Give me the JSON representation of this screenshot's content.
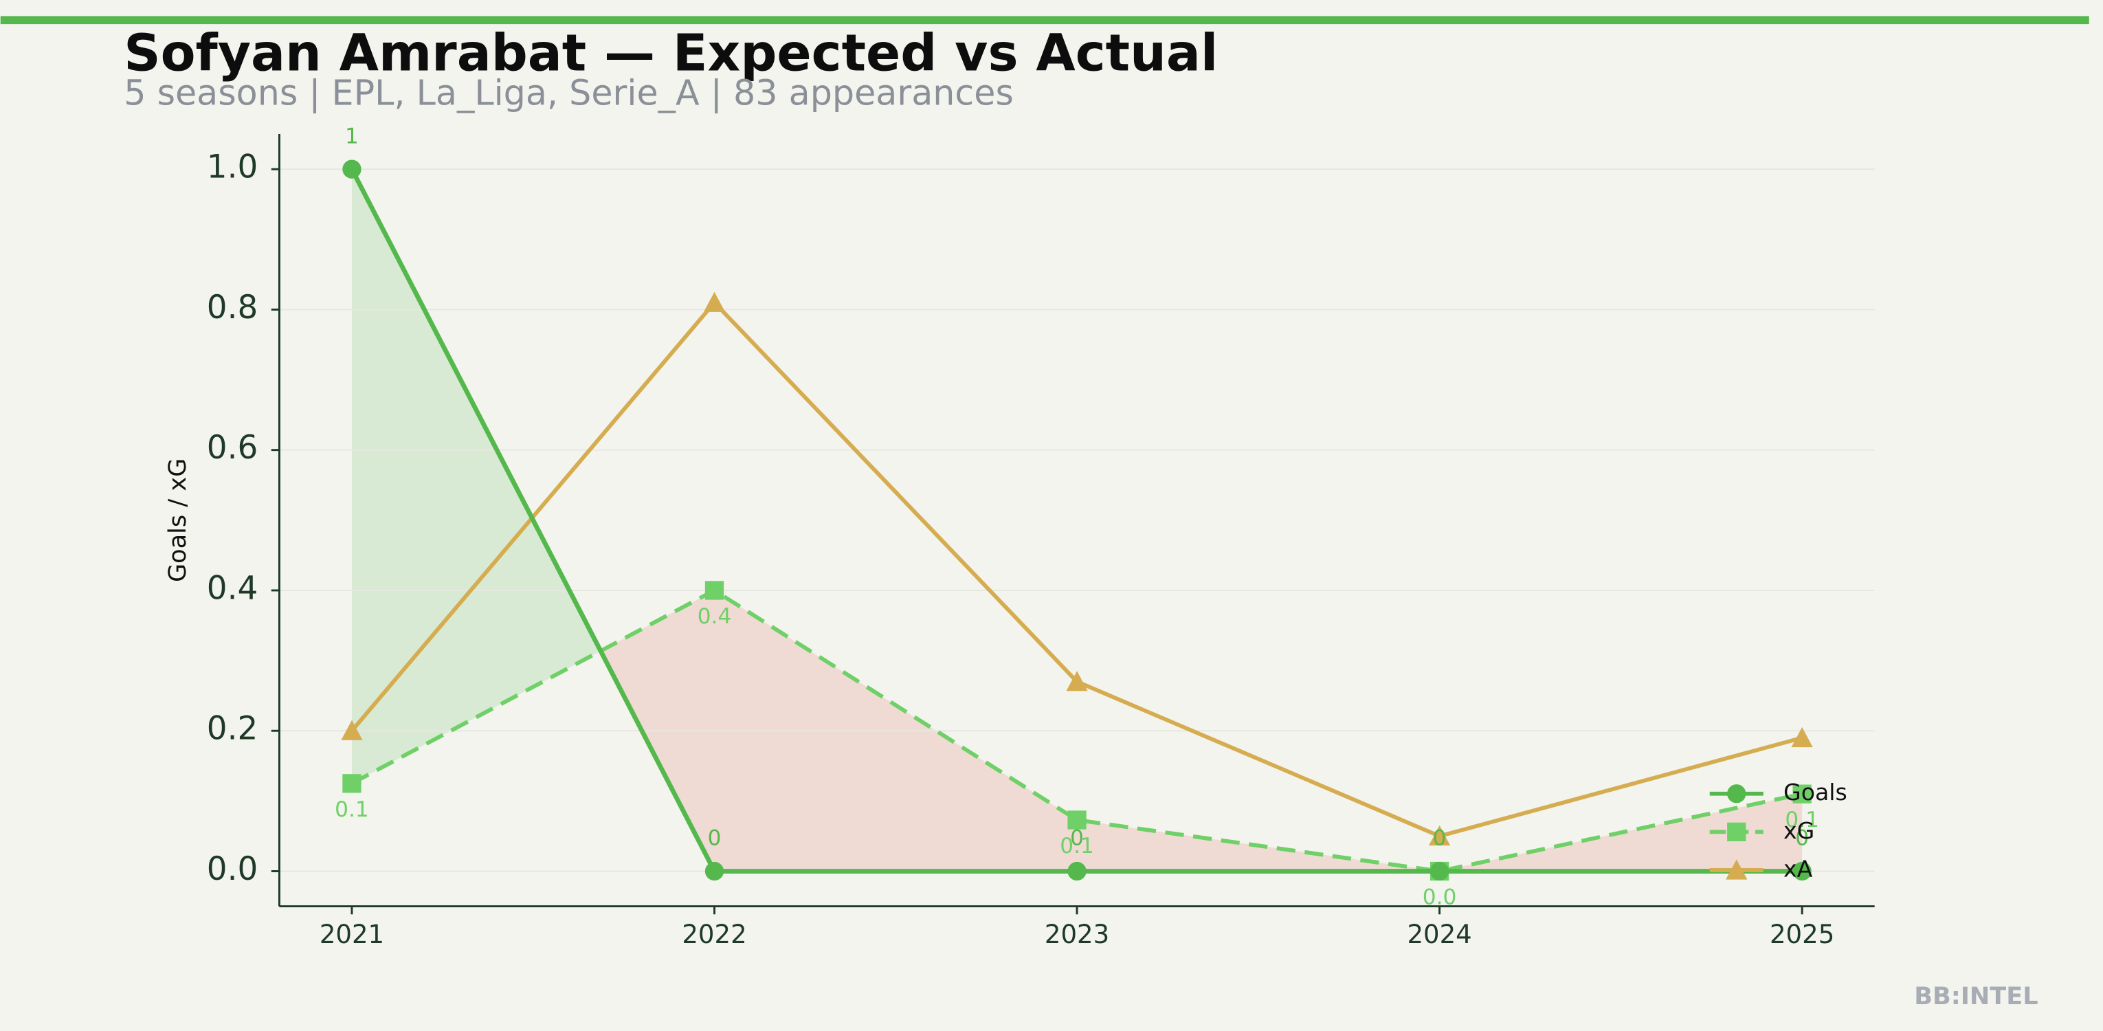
{
  "chart_data": {
    "type": "line",
    "title": "Sofyan Amrabat — Expected vs Actual",
    "subtitle": "5 seasons | EPL, La_Liga, Serie_A | 83 appearances",
    "y_label": "Goals / xG",
    "watermark": "BB:INTEL",
    "categories": [
      "2021",
      "2022",
      "2023",
      "2024",
      "2025"
    ],
    "series": [
      {
        "name": "Goals",
        "color": "#55b84c",
        "marker": "circle",
        "dashed": false,
        "values": [
          1,
          0,
          0,
          0,
          0
        ],
        "value_labels": [
          "1",
          "0",
          "0",
          "0",
          "0"
        ]
      },
      {
        "name": "xG",
        "color": "#6fd068",
        "marker": "square",
        "dashed": true,
        "values": [
          0.125,
          0.4,
          0.073,
          0.0,
          0.11
        ],
        "value_labels": [
          "0.1",
          "0.4",
          "0.1",
          "0.0",
          "0.1"
        ]
      },
      {
        "name": "xA",
        "color": "#d6ac50",
        "marker": "triangle",
        "dashed": false,
        "values": [
          0.2,
          0.81,
          0.27,
          0.05,
          0.19
        ]
      }
    ],
    "ylim": [
      -0.05,
      1.05
    ],
    "yticks": [
      {
        "value": 0,
        "label": "0.0"
      },
      {
        "value": 0.2,
        "label": "0.2"
      },
      {
        "value": 0.4,
        "label": "0.4"
      },
      {
        "value": 0.6,
        "label": "0.6"
      },
      {
        "value": 0.8,
        "label": "0.8"
      },
      {
        "value": 1,
        "label": "1.0"
      }
    ],
    "grid": true,
    "legend": "lower right"
  }
}
